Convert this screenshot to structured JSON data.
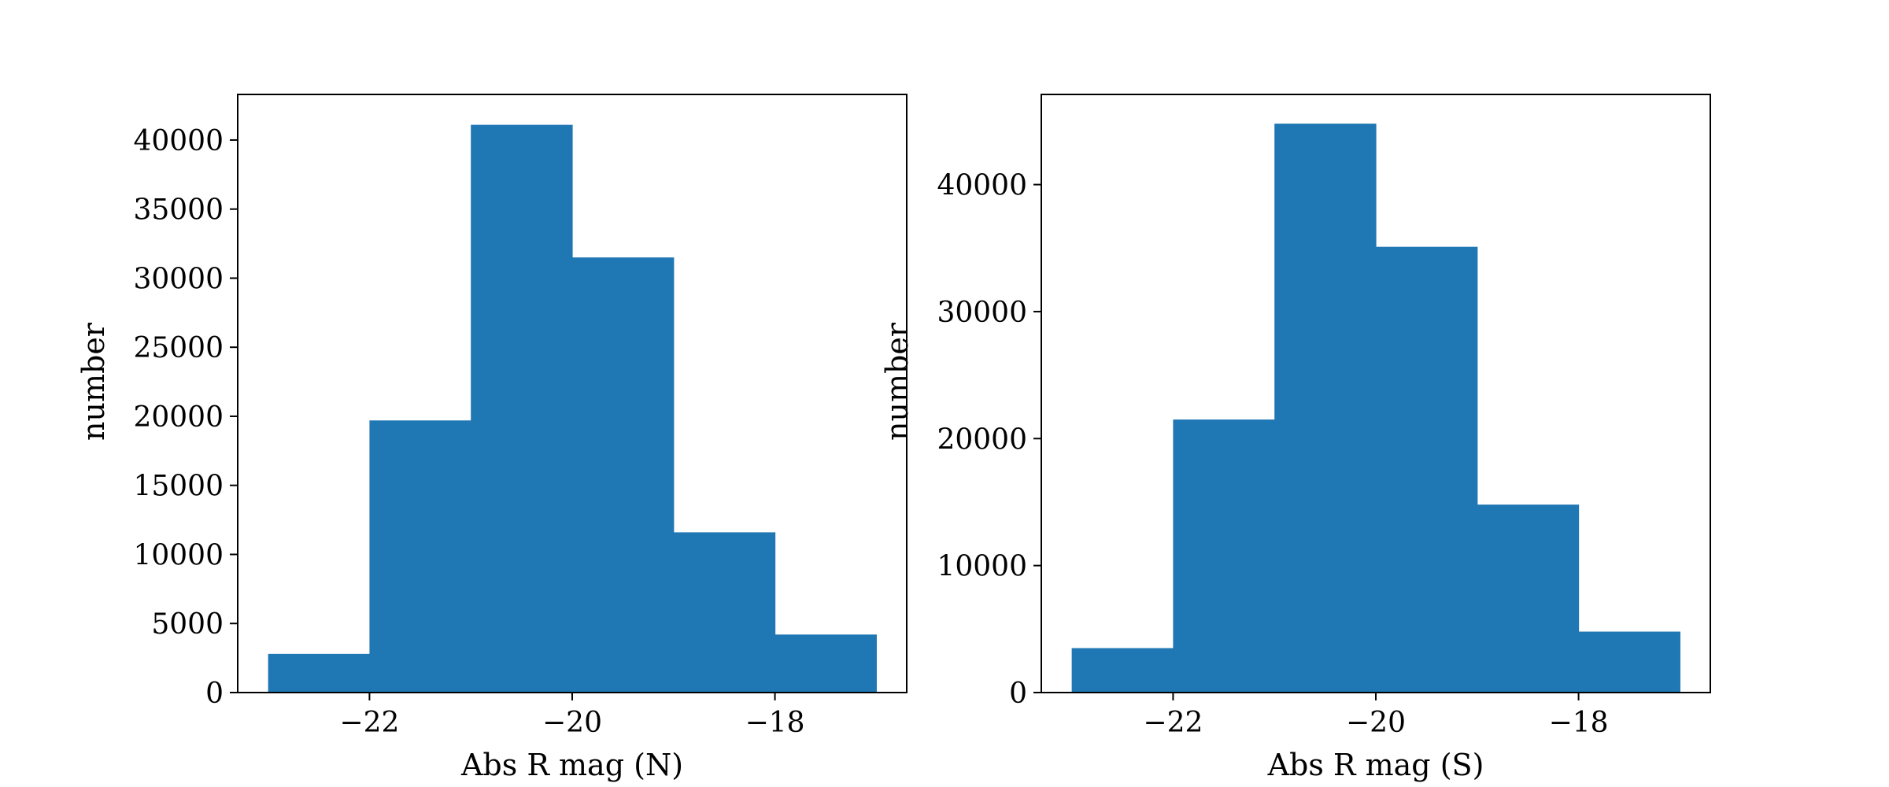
{
  "chart_data": [
    {
      "type": "bar",
      "xlabel": "Abs R mag (N)",
      "ylabel": "number",
      "bin_edges": [
        -23,
        -22,
        -21,
        -20,
        -19,
        -18,
        -17
      ],
      "values": [
        2800,
        19700,
        41100,
        31500,
        11600,
        4200
      ],
      "xlim": [
        -23.3,
        -16.7
      ],
      "ylim": [
        0,
        43300
      ],
      "xticks": [
        -22,
        -20,
        -18
      ],
      "xtick_labels": [
        "−22",
        "−20",
        "−18"
      ],
      "yticks": [
        0,
        5000,
        10000,
        15000,
        20000,
        25000,
        30000,
        35000,
        40000
      ],
      "ytick_labels": [
        "0",
        "5000",
        "10000",
        "15000",
        "20000",
        "25000",
        "30000",
        "35000",
        "40000"
      ],
      "bar_color": "#1f77b4",
      "grid": false
    },
    {
      "type": "bar",
      "xlabel": "Abs R mag (S)",
      "ylabel": "number",
      "bin_edges": [
        -23,
        -22,
        -21,
        -20,
        -19,
        -18,
        -17
      ],
      "values": [
        3500,
        21500,
        44800,
        35100,
        14800,
        4800
      ],
      "xlim": [
        -23.3,
        -16.7
      ],
      "ylim": [
        0,
        47100
      ],
      "xticks": [
        -22,
        -20,
        -18
      ],
      "xtick_labels": [
        "−22",
        "−20",
        "−18"
      ],
      "yticks": [
        0,
        10000,
        20000,
        30000,
        40000
      ],
      "ytick_labels": [
        "0",
        "10000",
        "20000",
        "30000",
        "40000"
      ],
      "bar_color": "#1f77b4",
      "grid": false
    }
  ]
}
